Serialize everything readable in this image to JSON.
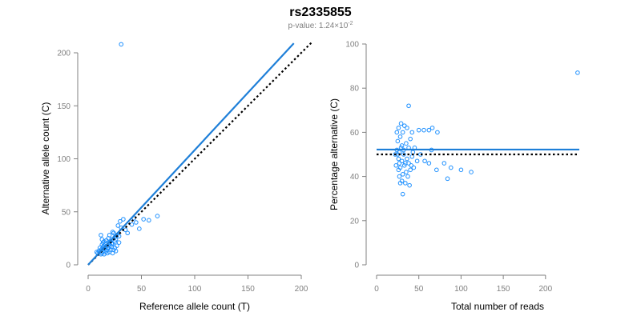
{
  "title": "rs2335855",
  "subtitle_prefix": "p-value: 1.24×10",
  "subtitle_exp": "-2",
  "colors": {
    "points": "#1E90FF",
    "fit_line": "#1E7FD8",
    "reference_line": "#000000",
    "axis": "#808080"
  },
  "chart_data": [
    {
      "type": "scatter",
      "xlabel": "Reference allele count (T)",
      "ylabel": "Alternative allele count (C)",
      "xlim": [
        0,
        200
      ],
      "ylim": [
        0,
        200
      ],
      "xticks": [
        "0",
        "50",
        "100",
        "150",
        "200"
      ],
      "yticks": [
        "0",
        "50",
        "100",
        "150",
        "200"
      ],
      "grid": false,
      "points": [
        [
          31,
          208
        ],
        [
          65,
          46
        ],
        [
          57,
          42
        ],
        [
          52,
          43
        ],
        [
          48,
          34
        ],
        [
          45,
          40
        ],
        [
          41,
          38
        ],
        [
          43,
          44
        ],
        [
          30,
          41
        ],
        [
          28,
          37
        ],
        [
          33,
          43
        ],
        [
          35,
          33
        ],
        [
          31,
          35
        ],
        [
          37,
          30
        ],
        [
          29,
          27
        ],
        [
          27,
          28
        ],
        [
          26,
          24
        ],
        [
          25,
          26
        ],
        [
          24,
          30
        ],
        [
          23,
          31
        ],
        [
          22,
          20
        ],
        [
          21,
          22
        ],
        [
          20,
          28
        ],
        [
          19,
          25
        ],
        [
          18,
          18
        ],
        [
          17,
          23
        ],
        [
          16,
          20
        ],
        [
          15,
          22
        ],
        [
          14,
          17
        ],
        [
          13,
          19
        ],
        [
          12,
          28
        ],
        [
          13,
          24
        ],
        [
          12,
          14
        ],
        [
          11,
          12
        ],
        [
          12,
          10
        ],
        [
          13,
          11
        ],
        [
          14,
          13
        ],
        [
          15,
          10
        ],
        [
          16,
          12
        ],
        [
          17,
          14
        ],
        [
          18,
          11
        ],
        [
          19,
          16
        ],
        [
          20,
          12
        ],
        [
          21,
          14
        ],
        [
          22,
          17
        ],
        [
          23,
          11
        ],
        [
          24,
          14
        ],
        [
          25,
          16
        ],
        [
          26,
          13
        ],
        [
          22,
          24
        ],
        [
          20,
          19
        ],
        [
          18,
          16
        ],
        [
          16,
          16
        ],
        [
          15,
          15
        ],
        [
          14,
          21
        ],
        [
          19,
          21
        ],
        [
          21,
          18
        ],
        [
          23,
          20
        ],
        [
          25,
          22
        ],
        [
          27,
          18
        ],
        [
          29,
          21
        ],
        [
          9,
          11
        ],
        [
          10,
          13
        ],
        [
          11,
          16
        ],
        [
          8,
          12
        ],
        [
          13,
          15
        ],
        [
          15,
          18
        ]
      ],
      "fit_line": [
        [
          0,
          0
        ],
        [
          193,
          209
        ]
      ],
      "reference_line": [
        [
          0,
          0
        ],
        [
          210,
          210
        ]
      ]
    },
    {
      "type": "scatter",
      "xlabel": "Total number of reads",
      "ylabel": "Percentage alternative (C)",
      "xlim": [
        0,
        240
      ],
      "ylim": [
        0,
        100
      ],
      "xticks": [
        "0",
        "50",
        "100",
        "150",
        "200"
      ],
      "yticks": [
        "0",
        "20",
        "40",
        "60",
        "80",
        "100"
      ],
      "grid": false,
      "points": [
        [
          238,
          87
        ],
        [
          38,
          72
        ],
        [
          29,
          64
        ],
        [
          33,
          63
        ],
        [
          26,
          62
        ],
        [
          36,
          62
        ],
        [
          31,
          60
        ],
        [
          24,
          60
        ],
        [
          42,
          60
        ],
        [
          50,
          61
        ],
        [
          56,
          61
        ],
        [
          62,
          61
        ],
        [
          66,
          62
        ],
        [
          72,
          60
        ],
        [
          28,
          58
        ],
        [
          40,
          57
        ],
        [
          25,
          56
        ],
        [
          35,
          55
        ],
        [
          30,
          54
        ],
        [
          45,
          53
        ],
        [
          38,
          53
        ],
        [
          65,
          52
        ],
        [
          27,
          51
        ],
        [
          32,
          50
        ],
        [
          22,
          50
        ],
        [
          42,
          49
        ],
        [
          36,
          48
        ],
        [
          26,
          48
        ],
        [
          48,
          47
        ],
        [
          57,
          47
        ],
        [
          30,
          47
        ],
        [
          38,
          46
        ],
        [
          62,
          46
        ],
        [
          80,
          46
        ],
        [
          23,
          45
        ],
        [
          33,
          45
        ],
        [
          44,
          44
        ],
        [
          28,
          44
        ],
        [
          26,
          43
        ],
        [
          40,
          43
        ],
        [
          35,
          42
        ],
        [
          31,
          41
        ],
        [
          37,
          40
        ],
        [
          27,
          40
        ],
        [
          100,
          43
        ],
        [
          112,
          42
        ],
        [
          88,
          44
        ],
        [
          71,
          43
        ],
        [
          30,
          38
        ],
        [
          34,
          37
        ],
        [
          28,
          37
        ],
        [
          39,
          36
        ],
        [
          31,
          32
        ],
        [
          84,
          39
        ],
        [
          24,
          52
        ],
        [
          29,
          53
        ],
        [
          43,
          51
        ],
        [
          52,
          50
        ],
        [
          25,
          50
        ],
        [
          34,
          46
        ],
        [
          41,
          45
        ],
        [
          27,
          46
        ],
        [
          32,
          52
        ]
      ],
      "fit_line": [
        [
          0,
          52.2
        ],
        [
          240,
          52.2
        ]
      ],
      "reference_line": [
        [
          0,
          50
        ],
        [
          240,
          50
        ]
      ]
    }
  ]
}
